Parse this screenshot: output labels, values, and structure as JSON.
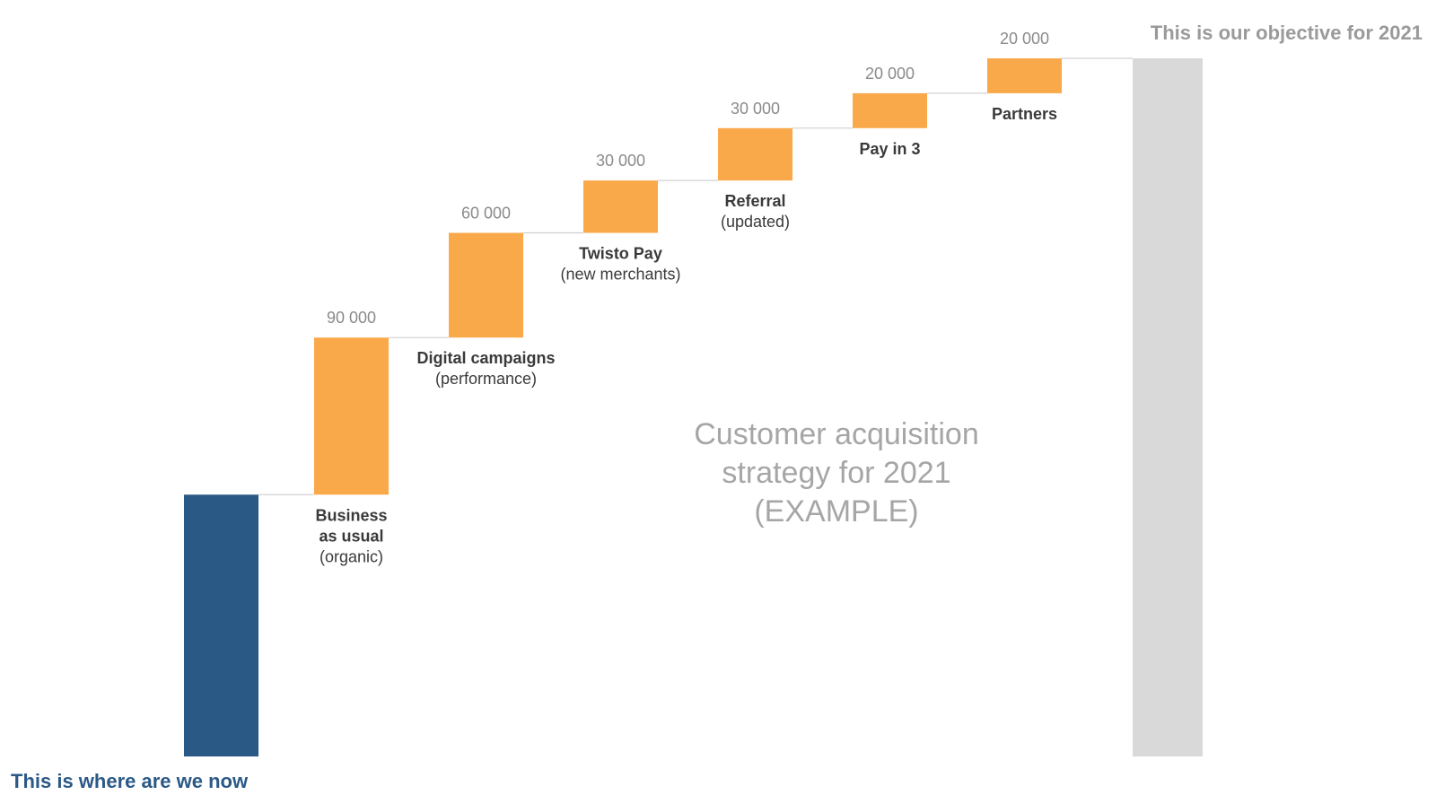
{
  "chart_data": {
    "type": "bar",
    "subtype": "waterfall",
    "title_lines": [
      "Customer acquisition",
      "strategy for 2021",
      "(EXAMPLE)"
    ],
    "xlabel": "",
    "ylabel": "",
    "grid": false,
    "legend": "none",
    "baseline": 150000,
    "steps": [
      {
        "name_lines": [
          "Business",
          "as usual"
        ],
        "sub": "(organic)",
        "value": 90000,
        "value_label": "90 000"
      },
      {
        "name_lines": [
          "Digital campaigns"
        ],
        "sub": "(performance)",
        "value": 60000,
        "value_label": "60 000"
      },
      {
        "name_lines": [
          "Twisto Pay"
        ],
        "sub": "(new merchants)",
        "value": 30000,
        "value_label": "30 000"
      },
      {
        "name_lines": [
          "Referral"
        ],
        "sub": "(updated)",
        "value": 30000,
        "value_label": "30 000"
      },
      {
        "name_lines": [
          "Pay in 3"
        ],
        "sub": "",
        "value": 20000,
        "value_label": "20 000"
      },
      {
        "name_lines": [
          "Partners"
        ],
        "sub": "",
        "value": 20000,
        "value_label": "20 000"
      }
    ],
    "total": 400000,
    "start_annotation": "This is where are we now",
    "end_annotation": "This is our objective for 2021",
    "colors": {
      "start": "#2b5986",
      "step": "#f9a84a",
      "total": "#d9d9d9",
      "connector": "#d0d0d0"
    }
  }
}
